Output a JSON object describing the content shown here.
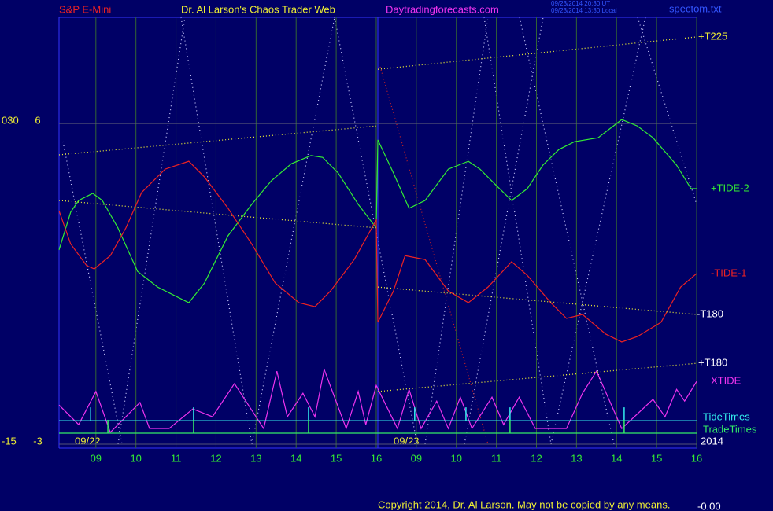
{
  "chart_data": {
    "type": "line",
    "title": "S&P E-Mini",
    "header": "Dr. Al Larson's Chaos Trader Web",
    "site": "Daytradingforecasts.com",
    "timestamps": [
      "09/23/2014 20:30 UT",
      "09/23/2014 13:30 Local"
    ],
    "file": "spectom.txt",
    "copyright": "Copyright 2014, Dr. Al Larson. May not be copied by any means.",
    "corner_text": "-0.00",
    "date_labels": [
      "09/22",
      "09/23",
      "2014"
    ],
    "xlim": [
      8.08,
      24.0
    ],
    "xticks": [
      {
        "value": 9,
        "label": "09"
      },
      10,
      11,
      12,
      13,
      14,
      15,
      16,
      {
        "value": 17,
        "label": "09"
      },
      {
        "value": 18,
        "label": "10"
      },
      {
        "value": 19,
        "label": "11"
      },
      {
        "value": 20,
        "label": "12"
      },
      {
        "value": 21,
        "label": "13"
      },
      {
        "value": 22,
        "label": "14"
      },
      {
        "value": 23,
        "label": "15"
      },
      {
        "value": 24,
        "label": "16"
      }
    ],
    "ylim": [
      -3.11,
      8.98
    ],
    "yticks": [
      6,
      -3
    ],
    "y2lim": [
      -15.55,
      44.9
    ],
    "y2ticks": [
      {
        "value": 30,
        "label": "030"
      },
      -15
    ],
    "grid": true,
    "series": [
      {
        "name": "+TIDE-2",
        "color": "#33ee33",
        "x": [
          8.08,
          8.37,
          8.57,
          8.92,
          9.16,
          9.55,
          10.04,
          10.54,
          11.32,
          11.71,
          12.3,
          12.89,
          13.38,
          13.88,
          14.37,
          14.66,
          15.05,
          15.55,
          16.0,
          16.04,
          16.43,
          16.82,
          17.22,
          17.8,
          18.3,
          18.59,
          18.98,
          19.38,
          19.77,
          20.16,
          20.56,
          20.95,
          21.54,
          22.13,
          22.52,
          22.91,
          23.5,
          23.86,
          24.0
        ],
        "values": [
          2.45,
          3.51,
          3.84,
          4.04,
          3.84,
          3.07,
          1.85,
          1.41,
          0.97,
          1.52,
          2.85,
          3.73,
          4.39,
          4.87,
          5.1,
          5.05,
          4.61,
          3.73,
          3.07,
          5.54,
          4.61,
          3.62,
          3.84,
          4.72,
          4.94,
          4.72,
          4.28,
          3.84,
          4.17,
          4.83,
          5.27,
          5.49,
          5.6,
          6.11,
          5.93,
          5.6,
          4.83,
          4.17,
          4.17
        ]
      },
      {
        "name": "-TIDE-1",
        "color": "#ee2222",
        "x": [
          8.08,
          8.37,
          8.77,
          8.96,
          9.36,
          9.75,
          10.14,
          10.73,
          11.32,
          11.71,
          12.3,
          12.89,
          13.48,
          14.07,
          14.47,
          14.86,
          15.45,
          16.0,
          16.04,
          16.43,
          16.72,
          17.22,
          17.8,
          18.3,
          18.79,
          19.38,
          19.77,
          20.36,
          20.75,
          21.15,
          21.73,
          22.13,
          22.52,
          23.11,
          23.6,
          24.0
        ],
        "values": [
          3.55,
          2.62,
          2.01,
          1.92,
          2.29,
          3.07,
          4.06,
          4.72,
          4.94,
          4.5,
          3.62,
          2.62,
          1.52,
          0.97,
          0.86,
          1.3,
          2.18,
          3.29,
          0.42,
          1.3,
          2.29,
          2.18,
          1.3,
          0.97,
          1.41,
          2.12,
          1.74,
          0.97,
          0.53,
          0.64,
          0.09,
          -0.13,
          0.02,
          0.42,
          1.41,
          1.79
        ]
      },
      {
        "name": "XTIDE",
        "color": "#ee33ee",
        "x": [
          8.08,
          8.57,
          9.0,
          9.36,
          10.1,
          10.34,
          10.83,
          11.42,
          11.91,
          12.46,
          13.19,
          13.52,
          13.78,
          14.17,
          14.47,
          14.7,
          15.25,
          15.55,
          15.74,
          16.0,
          16.53,
          16.82,
          17.12,
          17.51,
          17.8,
          18.1,
          18.39,
          18.89,
          19.18,
          19.57,
          19.97,
          20.75,
          21.15,
          21.5,
          22.13,
          22.91,
          23.21,
          23.5,
          23.7,
          24.0
        ],
        "values": [
          -1.9,
          -2.45,
          -1.52,
          -2.67,
          -1.83,
          -2.56,
          -2.56,
          -2.01,
          -2.23,
          -1.3,
          -2.56,
          -0.95,
          -2.23,
          -1.57,
          -2.23,
          -0.9,
          -2.56,
          -1.52,
          -2.45,
          -1.35,
          -2.56,
          -1.46,
          -2.56,
          -1.79,
          -2.56,
          -1.68,
          -2.56,
          -1.68,
          -2.45,
          -1.68,
          -2.56,
          -2.56,
          -1.57,
          -0.95,
          -2.56,
          -1.74,
          -2.23,
          -1.46,
          -1.79,
          -1.24
        ]
      },
      {
        "name": "+T225",
        "color": "#eeee33",
        "x": [
          8.08,
          16.0,
          16.02,
          16.04,
          24.0
        ],
        "values": [
          5.12,
          5.93,
          null,
          7.52,
          8.43
        ]
      },
      {
        "name": "-T180",
        "color": "#eeee33",
        "x": [
          8.08,
          16.0,
          16.02,
          16.04,
          24.0
        ],
        "values": [
          3.84,
          3.07,
          null,
          1.41,
          0.64
        ]
      },
      {
        "name": "+T180",
        "color": "#eeee33",
        "x": [
          16.04,
          24.0
        ],
        "values": [
          -1.52,
          -0.73
        ]
      }
    ],
    "tide_times": {
      "name": "TideTimes",
      "color": "#33eeee",
      "level": -2.34,
      "times": [
        8.87,
        11.44,
        14.31,
        16.96,
        18.24,
        19.34,
        22.19
      ]
    },
    "trade_times": {
      "name": "TradeTimes",
      "color": "#33ee66",
      "level": -2.69,
      "times": [
        9.3,
        11.44,
        14.31,
        19.34,
        22.19
      ]
    }
  }
}
